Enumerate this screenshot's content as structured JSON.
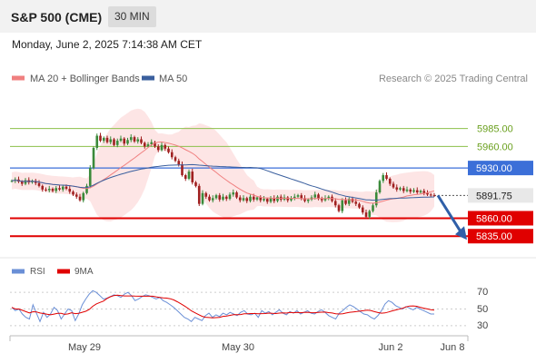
{
  "header": {
    "title": "S&P 500 (CME)",
    "timeframe": "30 MIN"
  },
  "datetime": "Monday, June 2, 2025 7:14:38 AM CET",
  "legend": {
    "ma20": "MA 20 + Bollinger Bands",
    "ma50": "MA 50",
    "credit": "Research © 2025 Trading Central"
  },
  "rsi_legend": {
    "rsi": "RSI",
    "ma9": "9MA"
  },
  "colors": {
    "ma20": "#f08080",
    "ma50": "#3a5f9e",
    "bands": "#fde0e0",
    "up": "#3a8a3a",
    "down": "#a02020",
    "support": "#e00000",
    "resistance_green": "#8cc04a",
    "pivot": "#3b6fd8",
    "rsi": "#6a8fd6",
    "rsi_ma": "#e00000",
    "arrow": "#2f5fa8"
  },
  "chart_data": [
    {
      "type": "candlestick",
      "ylim": [
        5810,
        6025
      ],
      "x_ticks": [
        "May 29",
        "May 30",
        "Jun 2",
        "Jun 8"
      ],
      "ohlc_close": [
        5912,
        5914,
        5911,
        5908,
        5913,
        5910,
        5912,
        5909,
        5905,
        5900,
        5899,
        5901,
        5898,
        5902,
        5900,
        5904,
        5901,
        5897,
        5893,
        5890,
        5885,
        5895,
        5905,
        5930,
        5958,
        5975,
        5968,
        5972,
        5966,
        5970,
        5962,
        5968,
        5971,
        5964,
        5969,
        5973,
        5967,
        5970,
        5965,
        5960,
        5963,
        5966,
        5960,
        5955,
        5962,
        5957,
        5952,
        5945,
        5940,
        5935,
        5920,
        5915,
        5925,
        5910,
        5905,
        5880,
        5895,
        5890,
        5885,
        5888,
        5892,
        5886,
        5890,
        5887,
        5893,
        5896,
        5889,
        5885,
        5888,
        5884,
        5890,
        5886,
        5889,
        5885,
        5887,
        5883,
        5888,
        5884,
        5890,
        5886,
        5889,
        5885,
        5888,
        5890,
        5892,
        5888,
        5884,
        5886,
        5889,
        5893,
        5887,
        5885,
        5888,
        5890,
        5884,
        5878,
        5870,
        5885,
        5880,
        5887,
        5883,
        5880,
        5875,
        5868,
        5862,
        5870,
        5878,
        5896,
        5912,
        5920,
        5915,
        5908,
        5903,
        5900,
        5902,
        5898,
        5900,
        5897,
        5899,
        5896,
        5898,
        5895,
        5893,
        5892,
        5891.75
      ],
      "levels": [
        {
          "label": "5985.00",
          "value": 5985,
          "kind": "resistance"
        },
        {
          "label": "5960.00",
          "value": 5960,
          "kind": "resistance"
        },
        {
          "label": "5930.00",
          "value": 5930,
          "kind": "pivot"
        },
        {
          "label": "5891.75",
          "value": 5891.75,
          "kind": "last"
        },
        {
          "label": "5860.00",
          "value": 5860,
          "kind": "support"
        },
        {
          "label": "5835.00",
          "value": 5835,
          "kind": "support"
        }
      ],
      "forecast_target": 5835
    },
    {
      "type": "line",
      "name": "RSI",
      "ylim": [
        20,
        80
      ],
      "y_ticks": [
        "70",
        "50",
        "30"
      ],
      "rsi": [
        52,
        48,
        50,
        44,
        40,
        38,
        55,
        45,
        35,
        46,
        40,
        44,
        52,
        48,
        38,
        44,
        50,
        48,
        36,
        44,
        55,
        62,
        68,
        72,
        70,
        66,
        62,
        63,
        65,
        67,
        66,
        64,
        68,
        70,
        66,
        60,
        62,
        65,
        67,
        66,
        64,
        62,
        64,
        60,
        58,
        55,
        52,
        48,
        44,
        40,
        38,
        35,
        40,
        38,
        36,
        42,
        45,
        40,
        43,
        41,
        45,
        43,
        46,
        44,
        42,
        46,
        48,
        44,
        43,
        45,
        40,
        48,
        45,
        47,
        43,
        46,
        49,
        45,
        43,
        47,
        45,
        48,
        44,
        46,
        48,
        45,
        44,
        47,
        49,
        46,
        42,
        40,
        38,
        45,
        48,
        52,
        55,
        53,
        50,
        47,
        44,
        43,
        40,
        38,
        42,
        48,
        56,
        60,
        58,
        54,
        52,
        50,
        53,
        51,
        49,
        52,
        50,
        48,
        46,
        44,
        44
      ]
    }
  ]
}
